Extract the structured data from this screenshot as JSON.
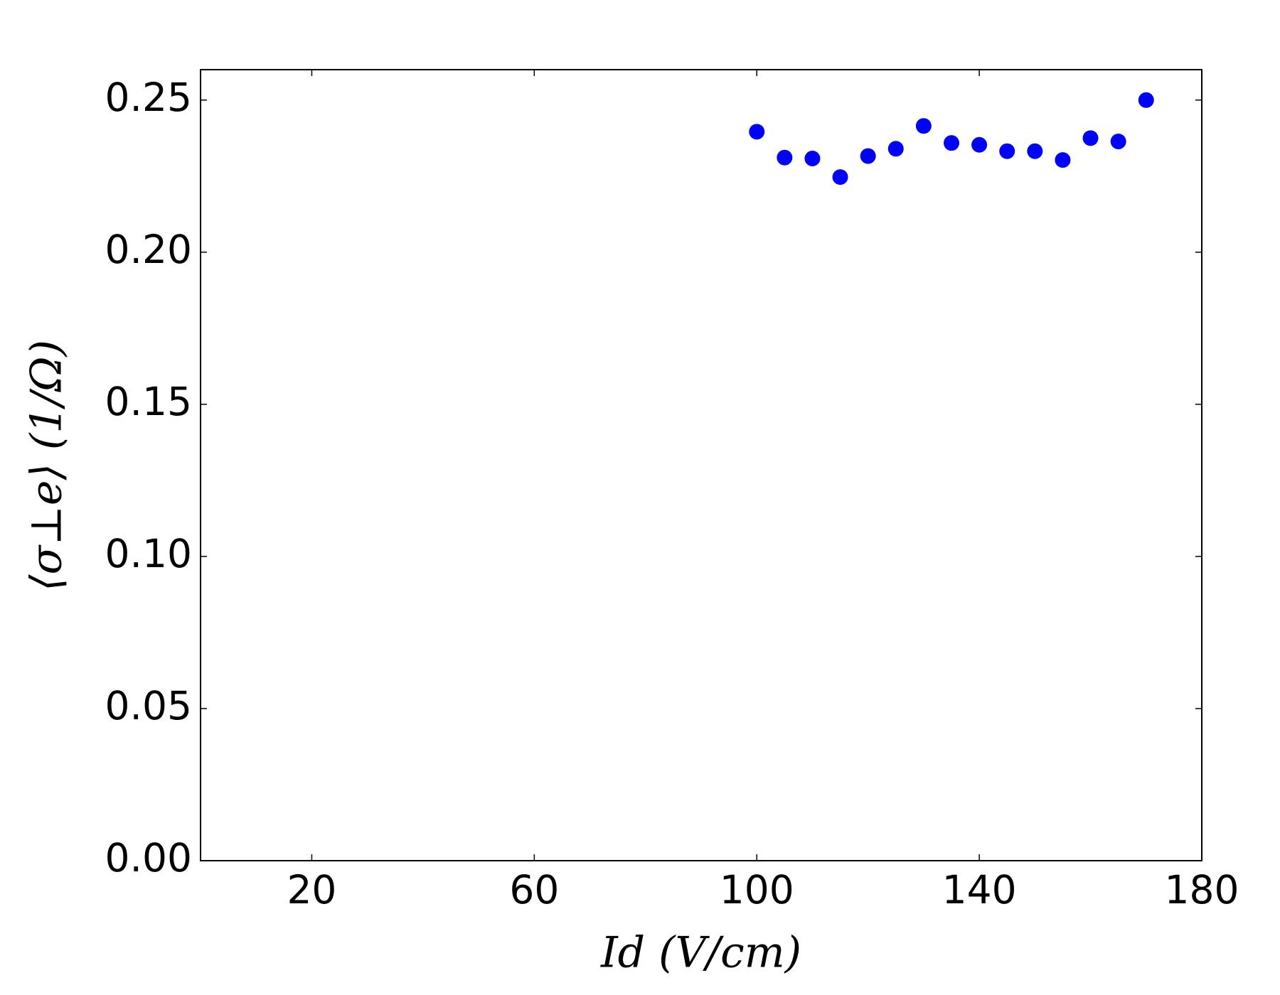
{
  "chart_data": {
    "type": "scatter",
    "xlabel": "Id (V/cm)",
    "ylabel": "⟨σ⊥e⟩ (1/Ω)",
    "x": [
      100,
      105,
      110,
      115,
      120,
      125,
      130,
      135,
      140,
      145,
      150,
      155,
      160,
      165,
      170
    ],
    "values": [
      0.2396,
      0.2311,
      0.2308,
      0.2247,
      0.2316,
      0.234,
      0.2415,
      0.2359,
      0.2353,
      0.2332,
      0.2332,
      0.2303,
      0.2375,
      0.2364,
      0.25
    ],
    "color": "#0000ff",
    "xlim": [
      0,
      180
    ],
    "xticks": [
      20,
      60,
      100,
      140,
      180
    ],
    "ylim": [
      0,
      0.26
    ],
    "yticks": [
      {
        "value": 0,
        "label": "0.00"
      },
      {
        "value": 0.05,
        "label": "0.05"
      },
      {
        "value": 0.1,
        "label": "0.10"
      },
      {
        "value": 0.15,
        "label": "0.15"
      },
      {
        "value": 0.2,
        "label": "0.20"
      },
      {
        "value": 0.25,
        "label": "0.25"
      }
    ],
    "grid": false
  }
}
